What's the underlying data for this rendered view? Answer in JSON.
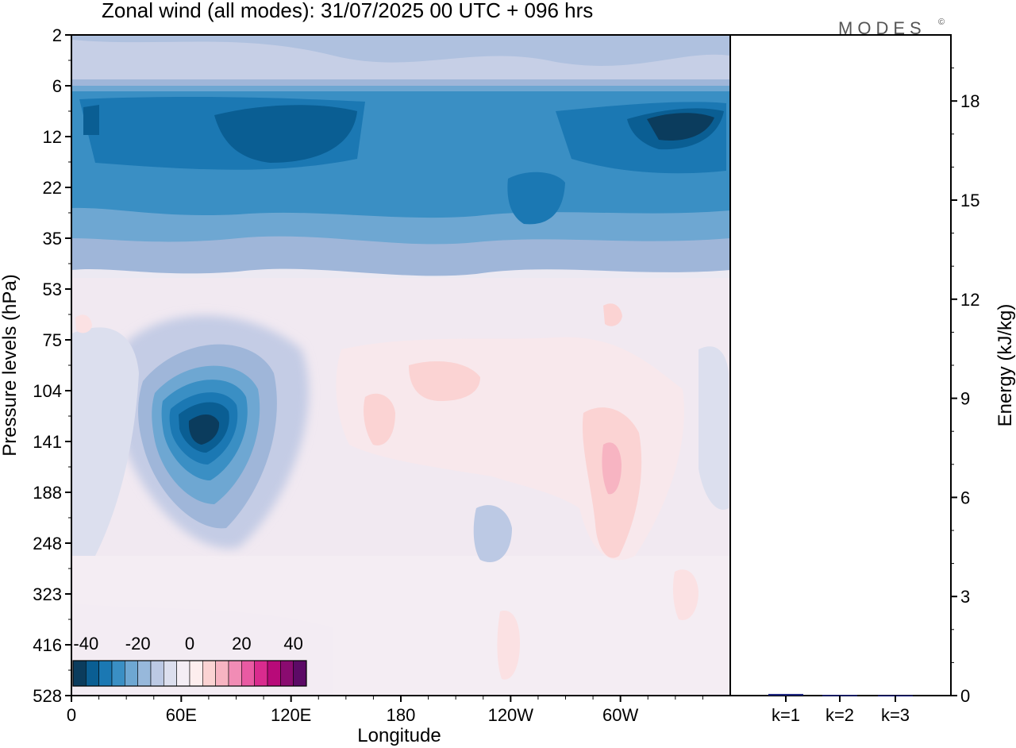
{
  "chart_data": {
    "type": "heatmap",
    "title": "Zonal wind (all modes):  31/07/2025  00 UTC  + 096 hrs",
    "brand": "MODES",
    "brand_mark": "©",
    "xlabel": "Longitude",
    "ylabel": "Pressure levels (hPa)",
    "x_ticks": [
      "0",
      "60E",
      "120E",
      "180",
      "120W",
      "60W"
    ],
    "y_ticks": [
      "2",
      "6",
      "12",
      "22",
      "35",
      "53",
      "75",
      "104",
      "141",
      "188",
      "248",
      "323",
      "416",
      "528"
    ],
    "colorbar": {
      "labels": [
        "-40",
        "-20",
        "0",
        "20",
        "40"
      ],
      "range": [
        -45,
        45
      ],
      "step": 5,
      "colors": [
        "#0b3c5d",
        "#0a5e93",
        "#1b78b3",
        "#3a8fc4",
        "#6ea7d2",
        "#97b8db",
        "#bcc9e4",
        "#dcdfee",
        "#f4eef5",
        "#fdeeee",
        "#fbd3d3",
        "#f7b4c2",
        "#f18cb5",
        "#e95aa3",
        "#d92b8e",
        "#b80a79",
        "#8a0b70",
        "#5c0a66"
      ]
    },
    "energy_panel": {
      "ylabel": "Energy (kJ/kg)",
      "y_ticks": [
        "0",
        "3",
        "6",
        "9",
        "12",
        "15",
        "18"
      ],
      "ylim": [
        0,
        20
      ],
      "categories": [
        "k=1",
        "k=2",
        "k=3"
      ],
      "values": [
        0.05,
        0.02,
        0.01
      ]
    },
    "wind_features": [
      {
        "region": "stratospheric easterly band",
        "levels_hPa": [
          8,
          35
        ],
        "lon_range": [
          0,
          360
        ],
        "value": -25
      },
      {
        "region": "upper stratosphere easterlies",
        "levels_hPa": [
          2,
          6
        ],
        "lon_range": [
          0,
          360
        ],
        "value": -10
      },
      {
        "region": "Asian upper-tropospheric easterly jet core",
        "center_lon": 65,
        "center_hPa": 130,
        "value": -40
      },
      {
        "region": "weak westerlies over central Pacific",
        "center_lon": 190,
        "center_hPa": 100,
        "value": 5
      },
      {
        "region": "westerly maximum near 70W",
        "center_lon": 290,
        "center_hPa": 170,
        "value": 10
      }
    ]
  }
}
